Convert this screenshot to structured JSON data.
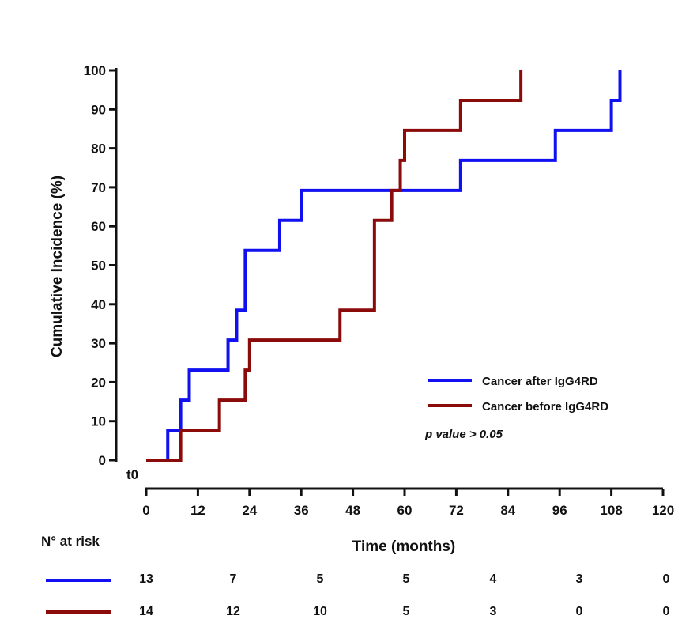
{
  "chart_data": {
    "type": "line",
    "step": true,
    "xlabel": "Time (months)",
    "ylabel": "Cumulative Incidence (%)",
    "xlim": [
      0,
      120
    ],
    "ylim": [
      0,
      100
    ],
    "xticks": [
      0,
      12,
      24,
      36,
      48,
      60,
      72,
      84,
      96,
      108,
      120
    ],
    "yticks": [
      0,
      10,
      20,
      30,
      40,
      50,
      60,
      70,
      80,
      90,
      100
    ],
    "t0_label": "t0",
    "annotation": "p value > 0.05",
    "legend_position": "bottom-right",
    "grid": false,
    "series": [
      {
        "name": "Cancer after IgG4RD",
        "color": "#1010f0",
        "x": [
          0,
          5,
          8,
          9,
          10,
          19,
          20,
          21,
          23,
          31,
          36,
          73,
          95,
          108,
          110
        ],
        "y": [
          0,
          7.7,
          15.4,
          15.4,
          23.1,
          30.8,
          30.8,
          38.5,
          53.8,
          61.5,
          69.2,
          76.9,
          84.6,
          92.3,
          100
        ]
      },
      {
        "name": "Cancer before IgG4RD",
        "color": "#8b0a0a",
        "x": [
          0,
          8,
          17,
          23,
          24,
          45,
          53,
          57,
          59,
          60,
          73,
          87
        ],
        "y": [
          0,
          7.7,
          15.4,
          23.1,
          30.8,
          38.5,
          61.5,
          69.2,
          76.9,
          84.6,
          92.3,
          100
        ]
      }
    ],
    "risk_table": {
      "title": "N° at risk",
      "rows": [
        {
          "series": "Cancer after IgG4RD",
          "values": [
            "13",
            "7",
            "5",
            "5",
            "4",
            "3",
            "0"
          ]
        },
        {
          "series": "Cancer before IgG4RD",
          "values": [
            "14",
            "12",
            "10",
            "5",
            "3",
            "0",
            "0"
          ]
        }
      ]
    }
  }
}
